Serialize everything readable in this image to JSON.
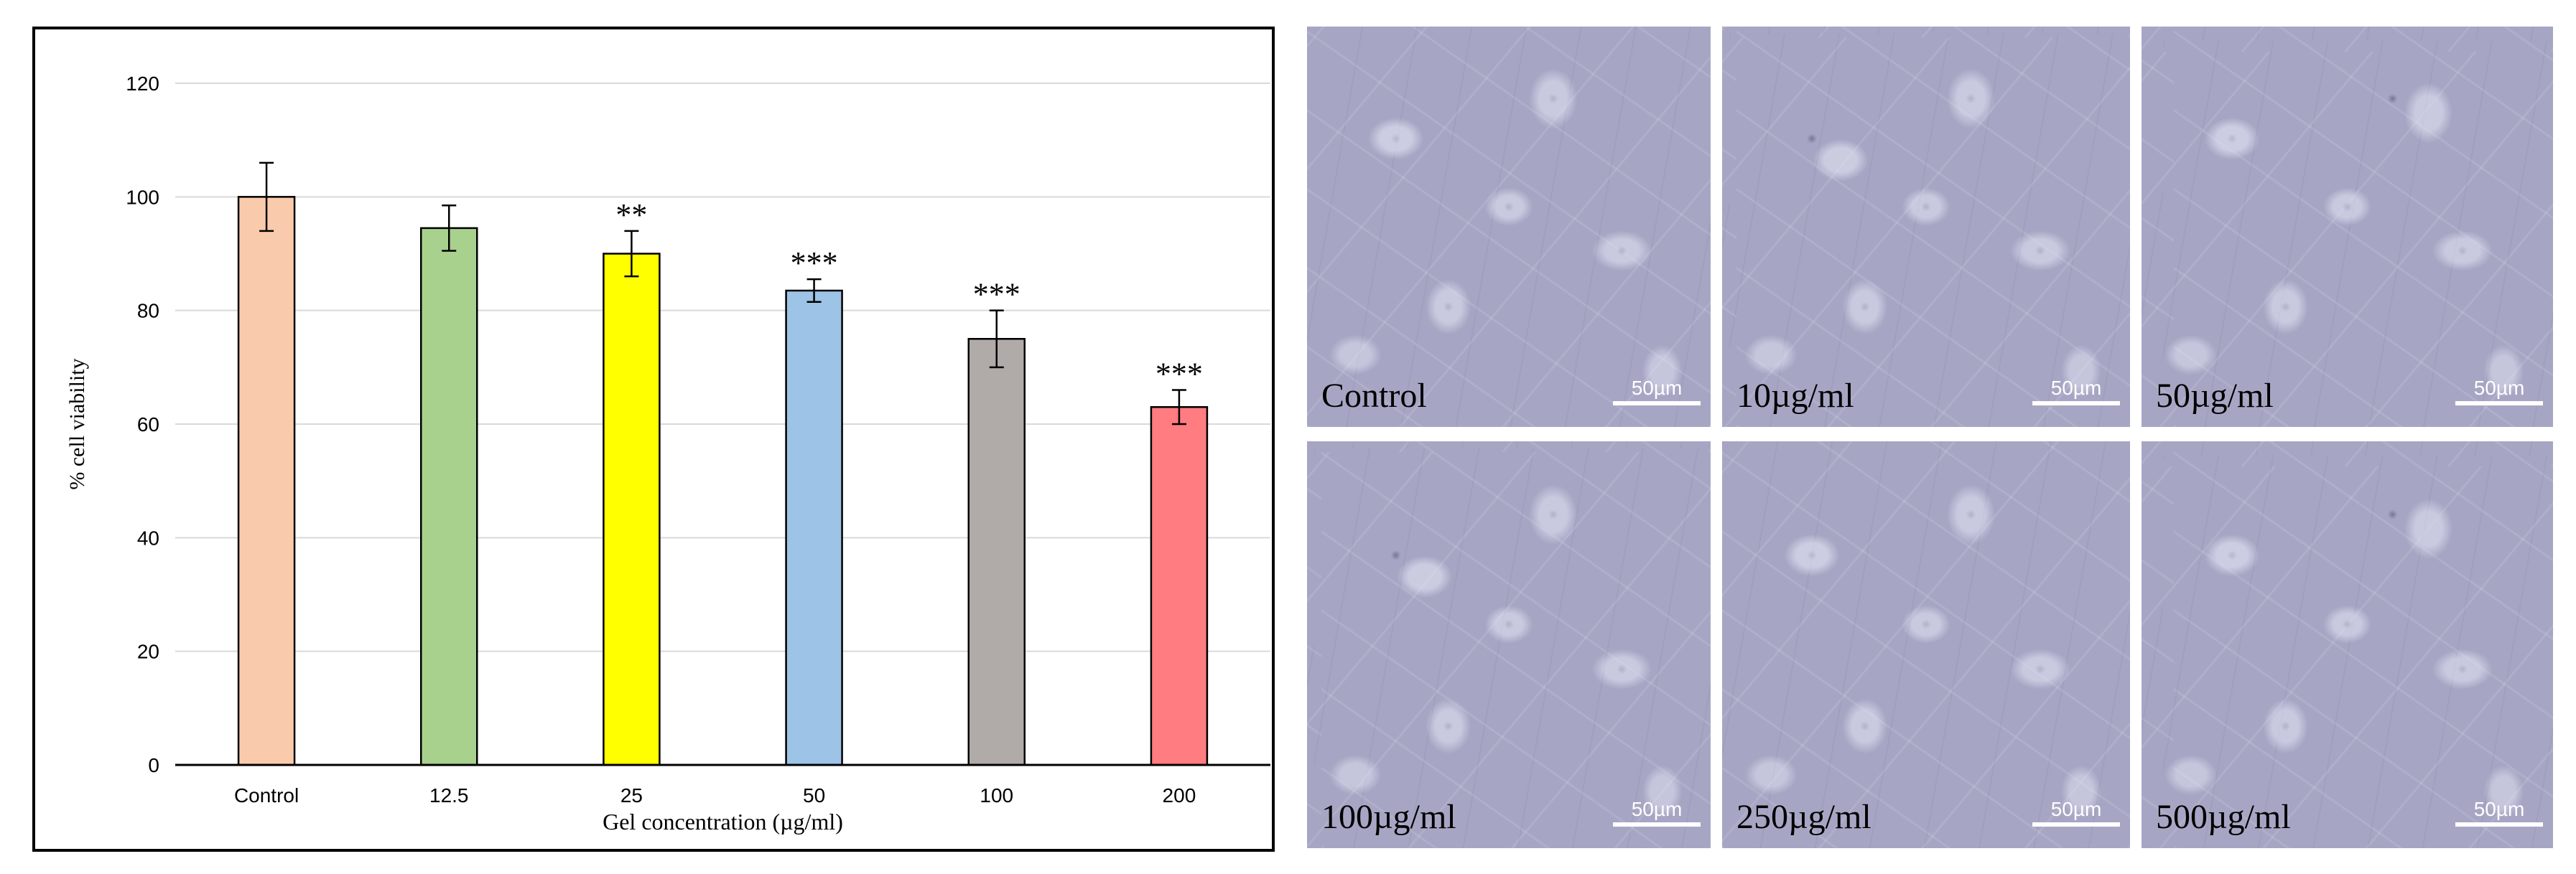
{
  "chart_data": {
    "type": "bar",
    "categories": [
      "Control",
      "12.5",
      "25",
      "50",
      "100",
      "200"
    ],
    "values": [
      100,
      94.5,
      90,
      83.5,
      75,
      63
    ],
    "errors": [
      6,
      4,
      4,
      2,
      5,
      3
    ],
    "significance": [
      "",
      "",
      "**",
      "***",
      "***",
      "***"
    ],
    "colors": [
      "#f9cbac",
      "#a8d18d",
      "#ffff00",
      "#9dc3e6",
      "#b0aaa8",
      "#ff7c80"
    ],
    "title": "",
    "xlabel": "Gel concentration (µg/ml)",
    "ylabel": "% cell viability",
    "ylim": [
      0,
      120
    ],
    "yticks": [
      0,
      20,
      40,
      60,
      80,
      100,
      120
    ],
    "grid": true,
    "legend": "none"
  },
  "micrographs": {
    "scale_label": "50µm",
    "panels": [
      {
        "label": "Control"
      },
      {
        "label": "10µg/ml"
      },
      {
        "label": "50µg/ml"
      },
      {
        "label": "100µg/ml"
      },
      {
        "label": "250µg/ml"
      },
      {
        "label": "500µg/ml"
      }
    ]
  }
}
